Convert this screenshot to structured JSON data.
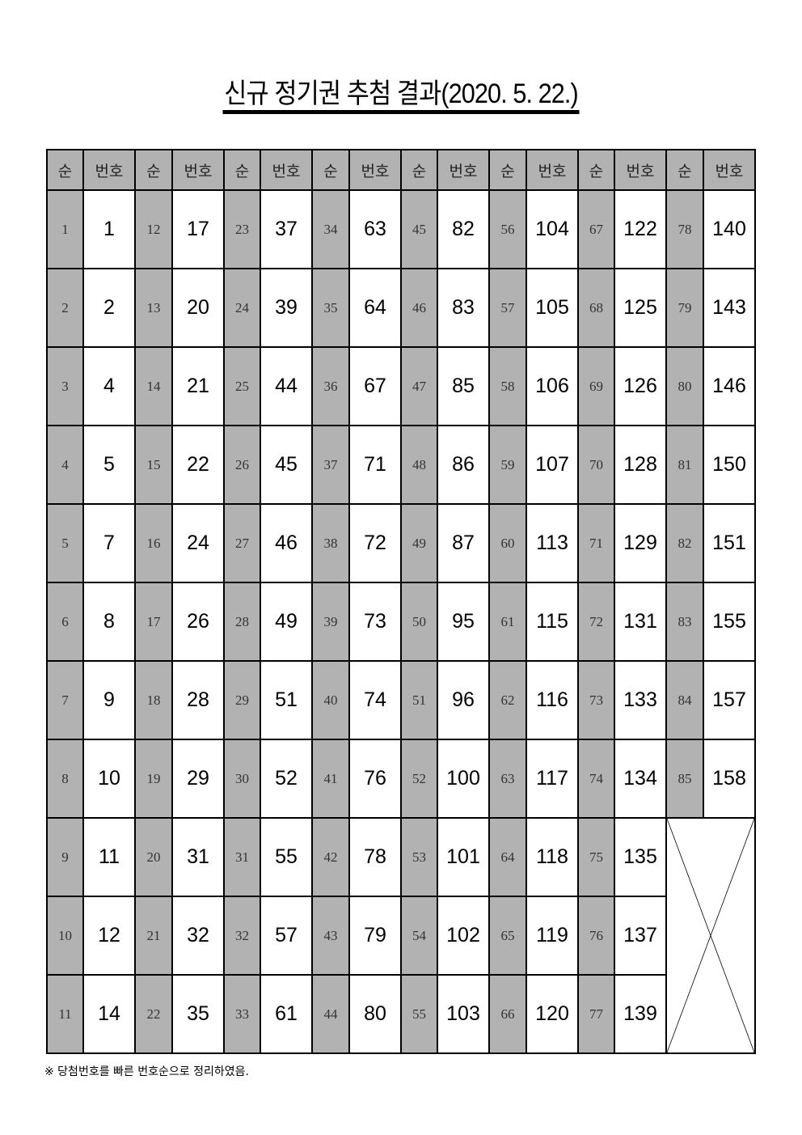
{
  "title": "신규 정기권 추첨 결과(2020. 5. 22.)",
  "table": {
    "header_rank": "순",
    "header_number": "번호",
    "groups": [
      {
        "start_rank": 1,
        "numbers": [
          "1",
          "2",
          "4",
          "5",
          "7",
          "8",
          "9",
          "10",
          "11",
          "12",
          "14"
        ]
      },
      {
        "start_rank": 12,
        "numbers": [
          "17",
          "20",
          "21",
          "22",
          "24",
          "26",
          "28",
          "29",
          "31",
          "32",
          "35"
        ]
      },
      {
        "start_rank": 23,
        "numbers": [
          "37",
          "39",
          "44",
          "45",
          "46",
          "49",
          "51",
          "52",
          "55",
          "57",
          "61"
        ]
      },
      {
        "start_rank": 34,
        "numbers": [
          "63",
          "64",
          "67",
          "71",
          "72",
          "73",
          "74",
          "76",
          "78",
          "79",
          "80"
        ]
      },
      {
        "start_rank": 45,
        "numbers": [
          "82",
          "83",
          "85",
          "86",
          "87",
          "95",
          "96",
          "100",
          "101",
          "102",
          "103"
        ]
      },
      {
        "start_rank": 56,
        "numbers": [
          "104",
          "105",
          "106",
          "107",
          "113",
          "115",
          "116",
          "117",
          "118",
          "119",
          "120"
        ]
      },
      {
        "start_rank": 67,
        "numbers": [
          "122",
          "125",
          "126",
          "128",
          "129",
          "131",
          "133",
          "134",
          "135",
          "137",
          "139"
        ]
      },
      {
        "start_rank": 78,
        "numbers": [
          "140",
          "143",
          "146",
          "150",
          "151",
          "155",
          "157",
          "158"
        ]
      }
    ]
  },
  "note": "※ 당첨번호를 빠른 번호순으로 정리하였음."
}
